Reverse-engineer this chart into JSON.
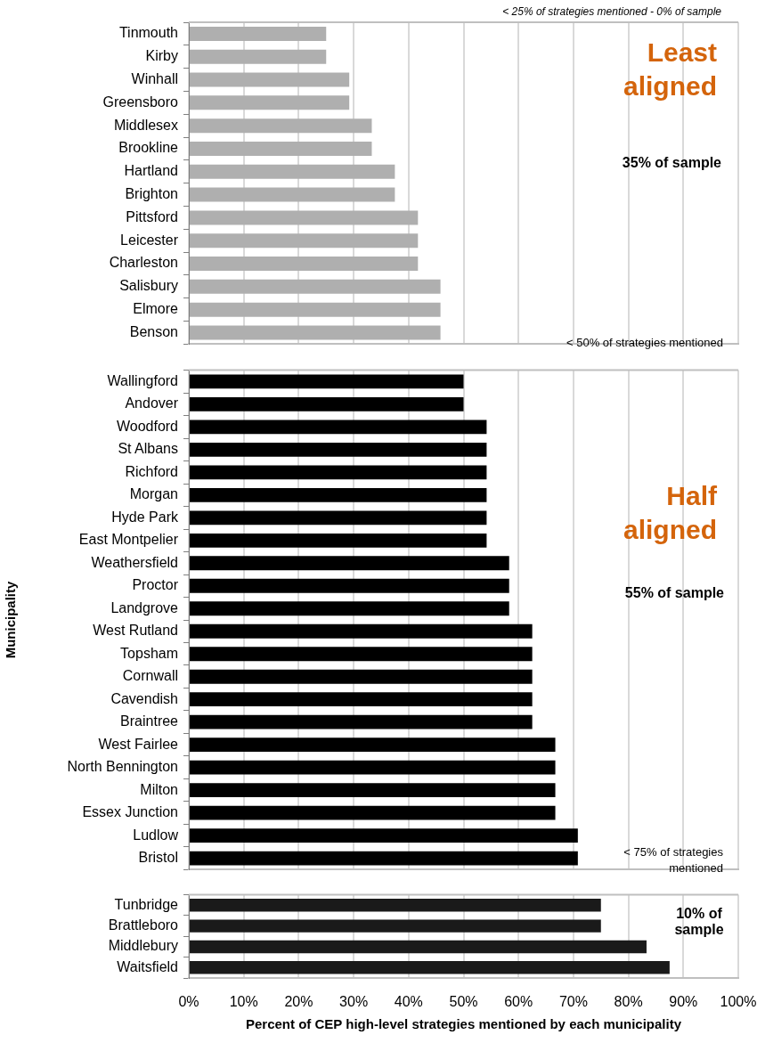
{
  "chart_data": [
    {
      "type": "bar",
      "orientation": "horizontal",
      "categories": [
        "Tinmouth",
        "Kirby",
        "Winhall",
        "Greensboro",
        "Middlesex",
        "Brookline",
        "Hartland",
        "Brighton",
        "Pittsford",
        "Leicester",
        "Charleston",
        "Salisbury",
        "Elmore",
        "Benson"
      ],
      "values": [
        25,
        25,
        29.2,
        29.2,
        33.3,
        33.3,
        37.5,
        37.5,
        41.7,
        41.7,
        41.7,
        45.8,
        45.8,
        45.8
      ],
      "color": "#afafaf",
      "xlim": [
        0,
        100
      ],
      "xticks": [
        0,
        10,
        20,
        30,
        40,
        50,
        60,
        70,
        80,
        90,
        100
      ],
      "tick_labels": "y",
      "grid": "x",
      "annotations": [
        "< 25% of strategies mentioned - 0% of sample",
        "Least aligned",
        "35% of sample",
        "< 50% of strategies mentioned"
      ]
    },
    {
      "type": "bar",
      "orientation": "horizontal",
      "ylabel": "Municipality",
      "categories": [
        "Wallingford",
        "Andover",
        "Woodford",
        "St Albans",
        "Richford",
        "Morgan",
        "Hyde Park",
        "East Montpelier",
        "Weathersfield",
        "Proctor",
        "Landgrove",
        "West Rutland",
        "Topsham",
        "Cornwall",
        "Cavendish",
        "Braintree",
        "West Fairlee",
        "North Bennington",
        "Milton",
        "Essex Junction",
        "Ludlow",
        "Bristol"
      ],
      "values": [
        50,
        50,
        54.2,
        54.2,
        54.2,
        54.2,
        54.2,
        54.2,
        58.3,
        58.3,
        58.3,
        62.5,
        62.5,
        62.5,
        62.5,
        62.5,
        66.7,
        66.7,
        66.7,
        66.7,
        70.8,
        70.8
      ],
      "color": "#000000",
      "xlim": [
        0,
        100
      ],
      "xticks": [
        0,
        10,
        20,
        30,
        40,
        50,
        60,
        70,
        80,
        90,
        100
      ],
      "tick_labels": "y",
      "grid": "x",
      "annotations": [
        "Half aligned",
        "55% of sample",
        "< 75% of strategies mentioned"
      ]
    },
    {
      "type": "bar",
      "orientation": "horizontal",
      "xlabel": "Percent of CEP high-level strategies mentioned by each municipality",
      "categories": [
        "Tunbridge",
        "Brattleboro",
        "Middlebury",
        "Waitsfield"
      ],
      "values": [
        75,
        75,
        83.3,
        87.5
      ],
      "color": "#1a1a1a",
      "xlim": [
        0,
        100
      ],
      "xticks": [
        {
          "value": 0,
          "label": "0%"
        },
        {
          "value": 10,
          "label": "10%"
        },
        {
          "value": 20,
          "label": "20%"
        },
        {
          "value": 30,
          "label": "30%"
        },
        {
          "value": 40,
          "label": "40%"
        },
        {
          "value": 50,
          "label": "50%"
        },
        {
          "value": 60,
          "label": "60%"
        },
        {
          "value": 70,
          "label": "70%"
        },
        {
          "value": 80,
          "label": "80%"
        },
        {
          "value": 90,
          "label": "90%"
        },
        {
          "value": 100,
          "label": "100%"
        }
      ],
      "grid": "x",
      "annotations": [
        "10% of sample"
      ]
    }
  ]
}
